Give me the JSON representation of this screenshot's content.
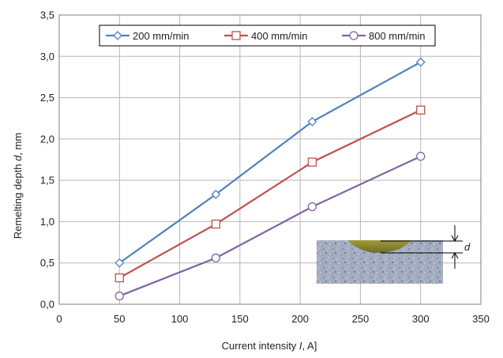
{
  "chart_data": {
    "type": "line",
    "title": "",
    "xlabel": "Current intensity I, A]",
    "xlabel_parts": {
      "before": "Current intensity ",
      "italic": "I",
      "after": ", A]"
    },
    "ylabel": "Remelting depth d, mm",
    "ylabel_parts": {
      "before": "Remelting depth ",
      "italic": "d",
      "after": ", mm"
    },
    "xlim": [
      0,
      350
    ],
    "ylim": [
      0,
      3.5
    ],
    "x_ticks": [
      0,
      50,
      100,
      150,
      200,
      250,
      300,
      350
    ],
    "x_tick_labels": [
      "0",
      "50",
      "100",
      "150",
      "200",
      "250",
      "300",
      "350"
    ],
    "y_ticks": [
      0,
      0.5,
      1,
      1.5,
      2,
      2.5,
      3,
      3.5
    ],
    "y_tick_labels": [
      "0,0",
      "0,5",
      "1,0",
      "1,5",
      "2,0",
      "2,5",
      "3,0",
      "3,5"
    ],
    "grid": true,
    "legend_position": "top-center",
    "series": [
      {
        "name": "200 mm/min",
        "color": "#4f81bd",
        "marker": "diamond",
        "x": [
          50,
          130,
          210,
          300
        ],
        "y": [
          0.5,
          1.33,
          2.21,
          2.93
        ]
      },
      {
        "name": "400 mm/min",
        "color": "#c0504d",
        "marker": "square",
        "x": [
          50,
          130,
          210,
          300
        ],
        "y": [
          0.32,
          0.97,
          1.72,
          2.35
        ]
      },
      {
        "name": "800 mm/min",
        "color": "#8064a2",
        "marker": "circle",
        "x": [
          50,
          130,
          210,
          300
        ],
        "y": [
          0.1,
          0.56,
          1.18,
          1.79
        ]
      }
    ],
    "inset": {
      "label": "d",
      "description_icon": "micrograph-inset-icon"
    }
  }
}
